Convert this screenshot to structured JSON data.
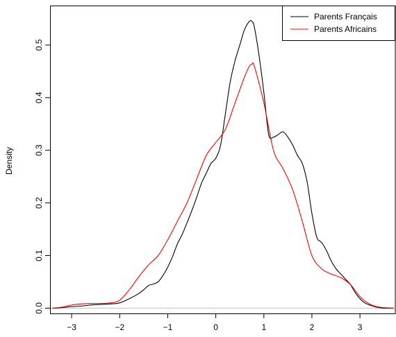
{
  "chart_data": {
    "type": "line",
    "title": "",
    "xlabel": "",
    "ylabel": "Density",
    "xlim": [
      -3.45,
      3.75
    ],
    "ylim": [
      -0.01,
      0.575
    ],
    "xticks": [
      -3,
      -2,
      -1,
      0,
      1,
      2,
      3
    ],
    "xtick_labels": [
      "−3",
      "−2",
      "−1",
      "0",
      "1",
      "2",
      "3"
    ],
    "yticks": [
      0.0,
      0.1,
      0.2,
      0.3,
      0.4,
      0.5
    ],
    "ytick_labels": [
      "0.0",
      "0.1",
      "0.2",
      "0.3",
      "0.4",
      "0.5"
    ],
    "grid": false,
    "legend": "top-right",
    "baseline": 0,
    "baseline_color": "#bebebe",
    "series": [
      {
        "name": "Parents Français",
        "color": "#000000",
        "x": [
          -3.4,
          -3.2,
          -3.0,
          -2.8,
          -2.6,
          -2.4,
          -2.2,
          -2.0,
          -1.8,
          -1.6,
          -1.5,
          -1.4,
          -1.3,
          -1.2,
          -1.1,
          -1.0,
          -0.9,
          -0.8,
          -0.7,
          -0.6,
          -0.5,
          -0.4,
          -0.3,
          -0.2,
          -0.1,
          0.0,
          0.1,
          0.2,
          0.3,
          0.4,
          0.5,
          0.6,
          0.7,
          0.75,
          0.8,
          0.9,
          1.0,
          1.1,
          1.2,
          1.3,
          1.4,
          1.5,
          1.6,
          1.7,
          1.8,
          1.9,
          2.0,
          2.1,
          2.2,
          2.3,
          2.4,
          2.5,
          2.6,
          2.7,
          2.8,
          2.9,
          3.0,
          3.1,
          3.2,
          3.3,
          3.4,
          3.5,
          3.7
        ],
        "y": [
          0.0,
          0.001,
          0.003,
          0.004,
          0.006,
          0.007,
          0.008,
          0.01,
          0.018,
          0.028,
          0.035,
          0.043,
          0.046,
          0.05,
          0.062,
          0.078,
          0.098,
          0.122,
          0.14,
          0.162,
          0.185,
          0.21,
          0.237,
          0.256,
          0.275,
          0.285,
          0.31,
          0.37,
          0.43,
          0.47,
          0.5,
          0.53,
          0.545,
          0.545,
          0.535,
          0.48,
          0.41,
          0.33,
          0.325,
          0.33,
          0.335,
          0.325,
          0.31,
          0.29,
          0.275,
          0.24,
          0.18,
          0.135,
          0.125,
          0.11,
          0.09,
          0.075,
          0.065,
          0.055,
          0.045,
          0.03,
          0.018,
          0.01,
          0.006,
          0.003,
          0.001,
          0.0,
          0.0
        ]
      },
      {
        "name": "Parents Africains",
        "color": "#ff0000",
        "x": [
          -3.4,
          -3.2,
          -3.0,
          -2.8,
          -2.6,
          -2.4,
          -2.2,
          -2.0,
          -1.8,
          -1.6,
          -1.4,
          -1.2,
          -1.0,
          -0.8,
          -0.6,
          -0.4,
          -0.2,
          0.0,
          0.2,
          0.4,
          0.6,
          0.7,
          0.75,
          0.8,
          1.0,
          1.2,
          1.4,
          1.6,
          1.8,
          2.0,
          2.2,
          2.4,
          2.6,
          2.8,
          3.0,
          3.2,
          3.4,
          3.7
        ],
        "y": [
          0.0,
          0.002,
          0.006,
          0.008,
          0.009,
          0.009,
          0.01,
          0.015,
          0.035,
          0.06,
          0.082,
          0.1,
          0.13,
          0.165,
          0.2,
          0.245,
          0.29,
          0.315,
          0.34,
          0.39,
          0.44,
          0.46,
          0.463,
          0.46,
          0.39,
          0.3,
          0.265,
          0.225,
          0.165,
          0.1,
          0.075,
          0.065,
          0.058,
          0.045,
          0.022,
          0.008,
          0.002,
          0.0
        ]
      }
    ]
  }
}
